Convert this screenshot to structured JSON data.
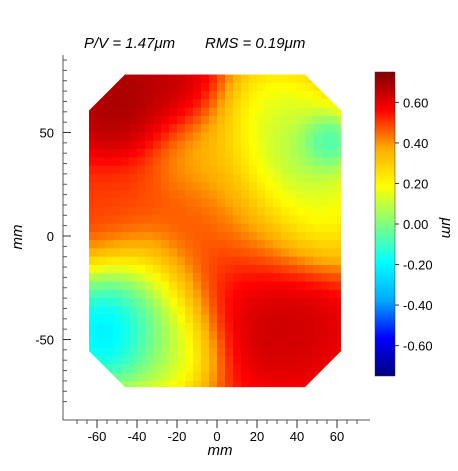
{
  "header": {
    "pv_text": "P/V = 1.47μm",
    "rms_text": "RMS = 0.19μm"
  },
  "chart_data": {
    "type": "heatmap",
    "title": "",
    "xlabel": "mm",
    "ylabel": "mm",
    "xlim": [
      -75,
      75
    ],
    "ylim": [
      -85,
      90
    ],
    "x_ticks": [
      "-60",
      "-40",
      "-20",
      "0",
      "20",
      "40",
      "60"
    ],
    "x_tick_values": [
      -60,
      -40,
      -20,
      0,
      20,
      40,
      60
    ],
    "y_ticks": [
      "50",
      "0",
      "-50"
    ],
    "y_tick_values": [
      50,
      0,
      -50
    ],
    "colorbar": {
      "label": "μm",
      "range": [
        -0.75,
        0.75
      ],
      "ticks": [
        "0.60",
        "0.40",
        "0.20",
        "0.00",
        "-0.20",
        "-0.40",
        "-0.60"
      ],
      "tick_values": [
        0.6,
        0.4,
        0.2,
        0.0,
        -0.2,
        -0.4,
        -0.6
      ],
      "colormap": [
        "#000080",
        "#0000ff",
        "#00aaff",
        "#00ffff",
        "#7fff7f",
        "#ffff00",
        "#ffaa00",
        "#ff0000",
        "#800000"
      ]
    },
    "aperture": {
      "x_range": [
        -64,
        62
      ],
      "y_range": [
        -73,
        78
      ],
      "corner_cut": 18
    },
    "features": [
      {
        "x": -52,
        "y": -45,
        "value": -0.55,
        "radius": 16
      },
      {
        "x": -35,
        "y": -35,
        "value": -0.1,
        "radius": 20
      },
      {
        "x": -25,
        "y": -55,
        "value": 0.05,
        "radius": 14
      },
      {
        "x": 40,
        "y": 30,
        "value": -0.1,
        "radius": 18
      },
      {
        "x": 55,
        "y": 45,
        "value": -0.3,
        "radius": 8
      },
      {
        "x": 30,
        "y": 55,
        "value": 0.05,
        "radius": 18
      },
      {
        "x": 50,
        "y": 10,
        "value": 0.15,
        "radius": 16
      },
      {
        "x": 20,
        "y": 5,
        "value": 0.3,
        "radius": 18
      },
      {
        "x": -5,
        "y": 40,
        "value": 0.3,
        "radius": 16
      },
      {
        "x": -50,
        "y": 65,
        "value": 0.75,
        "radius": 16
      },
      {
        "x": -20,
        "y": 70,
        "value": 0.7,
        "radius": 14
      },
      {
        "x": 15,
        "y": -30,
        "value": 0.7,
        "radius": 22
      },
      {
        "x": 40,
        "y": -45,
        "value": 0.65,
        "radius": 16
      },
      {
        "x": -10,
        "y": 0,
        "value": 0.5,
        "radius": 24
      },
      {
        "x": -55,
        "y": 10,
        "value": 0.5,
        "radius": 14
      }
    ],
    "baseline_value": 0.5
  }
}
